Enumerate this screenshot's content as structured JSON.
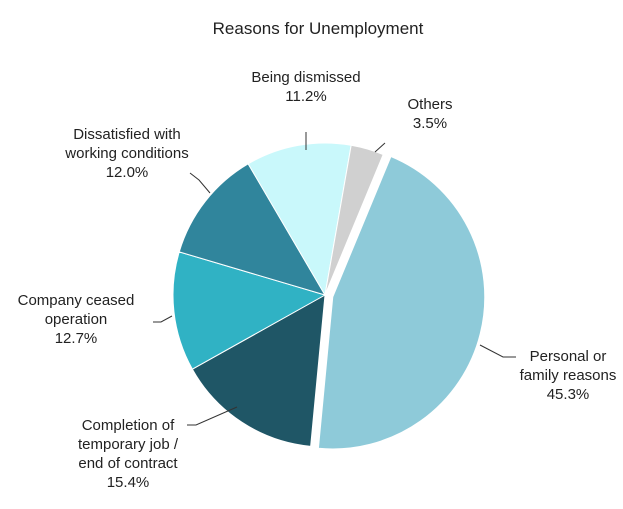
{
  "chart_data": {
    "type": "pie",
    "title": "Reasons for Unemployment",
    "slices": [
      {
        "label_lines": [
          "Personal or",
          "family reasons"
        ],
        "value_label": "45.3%",
        "value": 45.3,
        "color": "#8ecad9",
        "exploded": true
      },
      {
        "label_lines": [
          "Completion of",
          "temporary job /",
          "end of contract"
        ],
        "value_label": "15.4%",
        "value": 15.4,
        "color": "#1f5666",
        "exploded": false
      },
      {
        "label_lines": [
          "Company ceased",
          "operation"
        ],
        "value_label": "12.7%",
        "value": 12.7,
        "color": "#30b2c4",
        "exploded": false
      },
      {
        "label_lines": [
          "Dissatisfied with",
          "working conditions"
        ],
        "value_label": "12.0%",
        "value": 12.0,
        "color": "#30859c",
        "exploded": false
      },
      {
        "label_lines": [
          "Being dismissed"
        ],
        "value_label": "11.2%",
        "value": 11.2,
        "color": "#c9f8fb",
        "exploded": false
      },
      {
        "label_lines": [
          "Others"
        ],
        "value_label": "3.5%",
        "value": 3.5,
        "color": "#d0d0d0",
        "exploded": false
      }
    ]
  }
}
